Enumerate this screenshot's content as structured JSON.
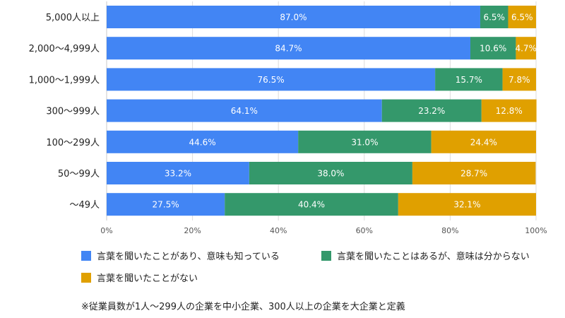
{
  "chart_data": {
    "type": "bar",
    "orientation": "horizontal",
    "stacked": true,
    "categories": [
      "5,000人以上",
      "2,000～4,999人",
      "1,000～1,999人",
      "300～999人",
      "100～299人",
      "50～99人",
      "～49人"
    ],
    "series": [
      {
        "name": "言葉を聞いたことがあり、意味も知っている",
        "color": "#4285f4",
        "values": [
          87.0,
          84.7,
          76.5,
          64.1,
          44.6,
          33.2,
          27.5
        ],
        "labels": [
          "87.0%",
          "84.7%",
          "76.5%",
          "64.1%",
          "44.6%",
          "33.2%",
          "27.5%"
        ]
      },
      {
        "name": "言葉を聞いたことはあるが、意味は分からない",
        "color": "#34986b",
        "values": [
          6.5,
          10.6,
          15.7,
          23.2,
          31.0,
          38.0,
          40.4
        ],
        "labels": [
          "6.5%",
          "10.6%",
          "15.7%",
          "23.2%",
          "31.0%",
          "38.0%",
          "40.4%"
        ]
      },
      {
        "name": "言葉を聞いたことがない",
        "color": "#e0a000",
        "values": [
          6.5,
          4.7,
          7.8,
          12.8,
          24.4,
          28.7,
          32.1
        ],
        "labels": [
          "6.5%",
          "4.7%",
          "7.8%",
          "12.8%",
          "24.4%",
          "28.7%",
          "32.1%"
        ]
      }
    ],
    "xlim": [
      0,
      100
    ],
    "xticks": [
      "0%",
      "20%",
      "40%",
      "60%",
      "80%",
      "100%"
    ],
    "grid": "vertical",
    "legend_position": "bottom",
    "footnote": "※従業員数が1人～299人の企業を中小企業、300人以上の企業を大企業と定義"
  }
}
